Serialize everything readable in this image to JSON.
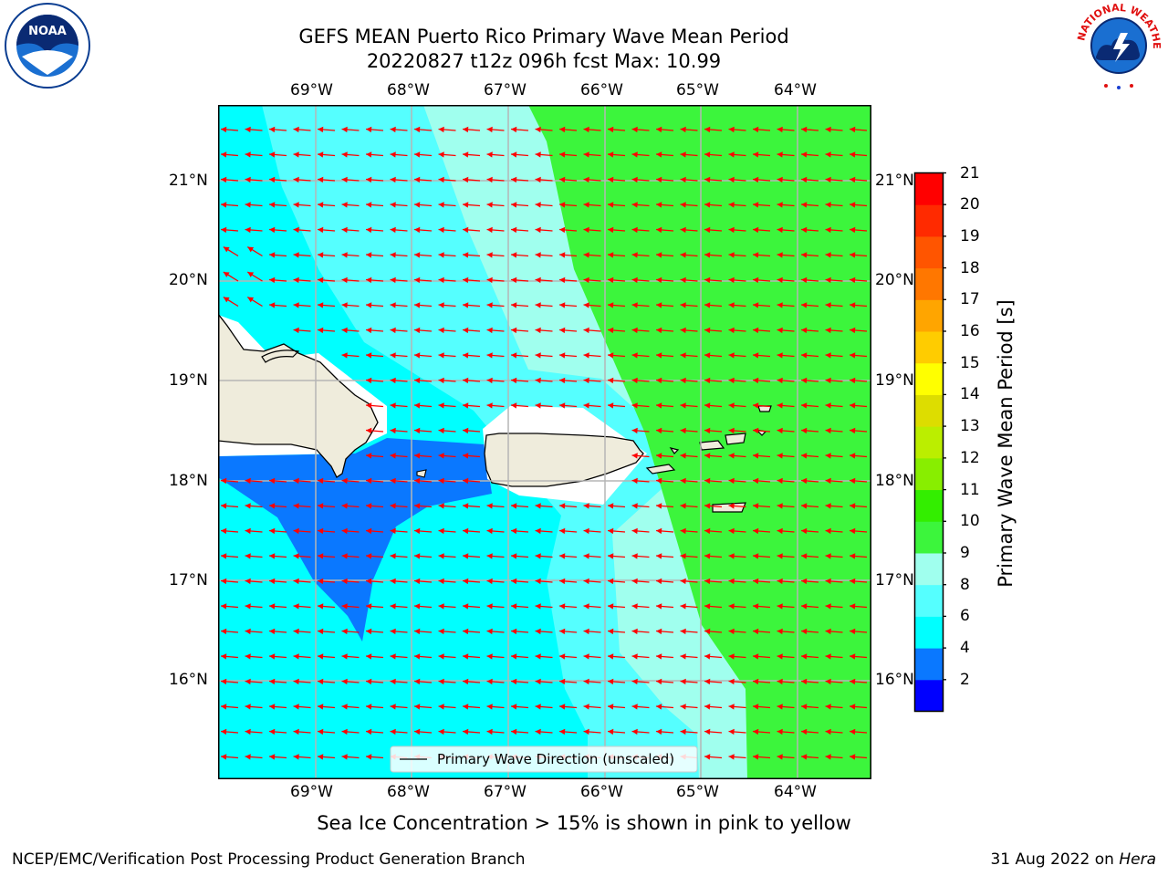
{
  "header": {
    "title_line1": "GEFS MEAN Puerto Rico Primary Wave Mean Period",
    "title_line2": "20220827 t12z 096h fcst   Max: 10.99"
  },
  "logos": {
    "left_text": "NOAA",
    "right_text": "NATIONAL WEATHER SERVICE"
  },
  "map": {
    "lon_ticks": [
      "69°W",
      "68°W",
      "67°W",
      "66°W",
      "65°W",
      "64°W"
    ],
    "lat_ticks": [
      "21°N",
      "20°N",
      "19°N",
      "18°N",
      "17°N",
      "16°N"
    ],
    "legend_label": "Primary Wave Direction (unscaled)",
    "arrow_color": "#ff0000",
    "land_color": "#efecdc"
  },
  "colorbar": {
    "label": "Primary Wave Mean Period [s]",
    "ticks": [
      "21",
      "20",
      "19",
      "18",
      "17",
      "16",
      "15",
      "14",
      "13",
      "12",
      "11",
      "10",
      "9",
      "8",
      "6",
      "4",
      "2"
    ],
    "colors": [
      "#0000ff",
      "#0a78ff",
      "#00ffff",
      "#55ffff",
      "#a0ffee",
      "#3cf53c",
      "#33ee00",
      "#88ee00",
      "#bbee00",
      "#dddd00",
      "#ffff00",
      "#ffcc00",
      "#ffa500",
      "#ff7700",
      "#ff5500",
      "#ff2a00",
      "#ff0000"
    ]
  },
  "caption": "Sea Ice Concentration > 15% is shown in pink to yellow",
  "footer": {
    "left": "NCEP/EMC/Verification Post Processing Product Generation Branch",
    "right_date": "31 Aug 2022 on ",
    "right_machine": "Hera"
  }
}
